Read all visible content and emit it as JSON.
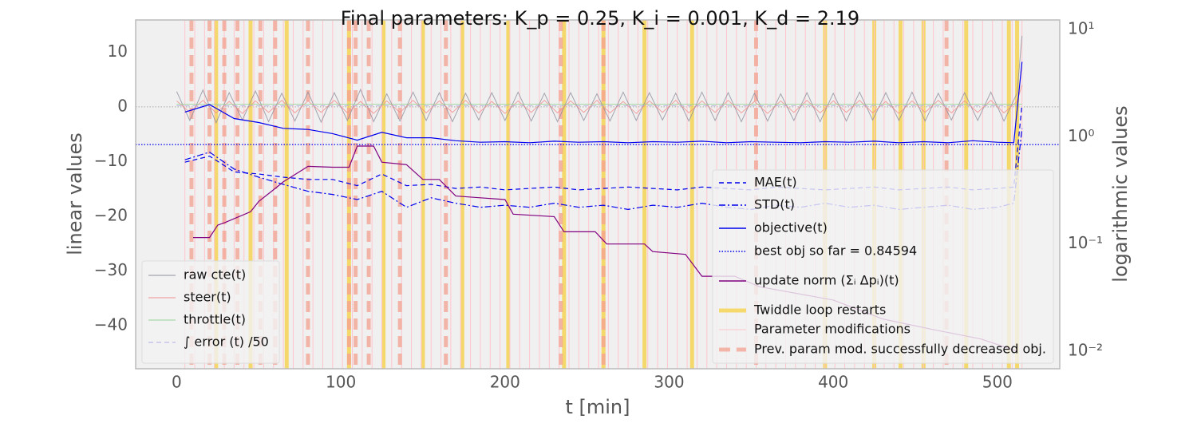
{
  "chart_data": {
    "type": "line",
    "title": "Final parameters: K_p = 0.25, K_i = 0.001, K_d = 2.19",
    "xlabel": "t [min]",
    "ylabel": "linear values",
    "y2label": "logarithmic values",
    "xlim": [
      -25,
      538
    ],
    "ylim": [
      -47.9,
      15.9
    ],
    "y2lim": [
      0.00686,
      12.3
    ],
    "y2scale": "log",
    "xticks": [
      0,
      100,
      200,
      300,
      400,
      500
    ],
    "yticks": [
      {
        "value": -40,
        "label": "−40"
      },
      {
        "value": -30,
        "label": "−30"
      },
      {
        "value": -20,
        "label": "−20"
      },
      {
        "value": -10,
        "label": "−10"
      },
      0,
      10
    ],
    "y2ticks": [
      {
        "value": 0.01,
        "label": "10⁻²"
      },
      {
        "value": 0.1,
        "label": "10⁻¹"
      },
      {
        "value": 1,
        "label": "10⁰"
      },
      {
        "value": 10,
        "label": "10¹"
      }
    ],
    "series": [
      {
        "name": "raw cte(t)",
        "color": "#8a8a9a",
        "linestyle": "solid",
        "axis": "y",
        "legend": "left",
        "x": [
          0,
          8,
          16,
          24,
          32,
          40,
          48,
          56,
          64,
          72,
          80,
          88,
          96,
          104,
          112,
          120,
          128,
          136,
          144,
          152,
          160,
          168,
          176,
          184,
          192,
          200,
          208,
          216,
          224,
          232,
          240,
          248,
          256,
          264,
          272,
          280,
          288,
          296,
          304,
          312,
          320,
          328,
          336,
          344,
          352,
          360,
          368,
          376,
          384,
          392,
          400,
          408,
          416,
          424,
          432,
          440,
          448,
          456,
          464,
          472,
          480,
          488,
          496,
          504,
          512,
          515
        ],
        "values": [
          2.8,
          -2.5,
          3.1,
          -2.9,
          2.6,
          -2.4,
          2.9,
          -2.7,
          2.5,
          -2.6,
          2.7,
          -2.8,
          2.6,
          -2.5,
          3.2,
          -2.7,
          2.4,
          -2.6,
          2.7,
          -2.5,
          2.6,
          -2.7,
          2.5,
          -2.4,
          2.6,
          -2.5,
          2.7,
          -2.6,
          2.5,
          -2.7,
          2.6,
          -2.5,
          2.4,
          -2.6,
          2.7,
          -2.5,
          2.6,
          -2.4,
          2.5,
          -2.6,
          2.7,
          -2.5,
          2.6,
          -2.7,
          2.5,
          -2.6,
          2.4,
          -2.5,
          2.6,
          -2.7,
          2.5,
          -2.6,
          2.7,
          -2.4,
          2.6,
          -2.5,
          2.7,
          -2.6,
          2.5,
          -2.4,
          2.6,
          -2.5,
          2.7,
          -2.6,
          2.5,
          13
        ]
      },
      {
        "name": "steer(t)",
        "color": "#f08a8a",
        "linestyle": "solid",
        "axis": "y",
        "legend": "left",
        "x": [
          0,
          8,
          16,
          24,
          32,
          40,
          48,
          56,
          64,
          72,
          80,
          88,
          96,
          104,
          112,
          120,
          128,
          136,
          144,
          152,
          160,
          168,
          176,
          184,
          192,
          200,
          208,
          216,
          224,
          232,
          240,
          248,
          256,
          264,
          272,
          280,
          288,
          296,
          304,
          312,
          320,
          328,
          336,
          344,
          352,
          360,
          368,
          376,
          384,
          392,
          400,
          408,
          416,
          424,
          432,
          440,
          448,
          456,
          464,
          472,
          480,
          488,
          496,
          504,
          512,
          515
        ],
        "values": [
          1.1,
          -1.0,
          1.2,
          -1.1,
          1.0,
          -1.2,
          1.1,
          -1.0,
          1.2,
          -1.1,
          1.1,
          -1.0,
          1.2,
          -1.1,
          1.0,
          -1.2,
          1.1,
          -1.0,
          1.2,
          -1.1,
          1.1,
          -1.0,
          1.2,
          -1.1,
          1.0,
          -1.2,
          1.1,
          -1.0,
          1.2,
          -1.1,
          1.1,
          -1.0,
          1.2,
          -1.1,
          1.0,
          -1.2,
          1.1,
          -1.0,
          1.2,
          -1.1,
          1.1,
          -1.0,
          1.2,
          -1.1,
          1.0,
          -1.2,
          1.1,
          -1.0,
          1.2,
          -1.1,
          1.1,
          -1.0,
          1.2,
          -1.1,
          1.0,
          -1.2,
          1.1,
          -1.0,
          1.2,
          -1.1,
          1.1,
          -1.0,
          1.2,
          -1.1,
          1.0,
          4
        ]
      },
      {
        "name": "throttle(t)",
        "color": "#8fd18f",
        "linestyle": "solid",
        "axis": "y",
        "legend": "left",
        "x": [
          0,
          515
        ],
        "values": [
          0.5,
          0.5
        ]
      },
      {
        "name": "∫ error (t) /50",
        "color": "#a9a9e0",
        "linestyle": "dashed",
        "axis": "y",
        "legend": "left",
        "x": [
          0,
          515
        ],
        "values": [
          0.2,
          0.2
        ]
      },
      {
        "name": "MAE(t)",
        "color": "#0000ee",
        "linestyle": "dashed",
        "axis": "y2",
        "legend": "right",
        "x": [
          5,
          20,
          35,
          50,
          65,
          80,
          95,
          110,
          125,
          140,
          155,
          170,
          185,
          200,
          215,
          230,
          245,
          260,
          275,
          290,
          305,
          320,
          335,
          350,
          365,
          380,
          395,
          410,
          425,
          440,
          455,
          470,
          485,
          500,
          510,
          515
        ],
        "values": [
          0.58,
          0.66,
          0.47,
          0.45,
          0.42,
          0.4,
          0.4,
          0.35,
          0.45,
          0.35,
          0.36,
          0.33,
          0.34,
          0.32,
          0.33,
          0.34,
          0.32,
          0.33,
          0.34,
          0.33,
          0.32,
          0.34,
          0.33,
          0.32,
          0.34,
          0.33,
          0.32,
          0.33,
          0.34,
          0.32,
          0.33,
          0.34,
          0.32,
          0.33,
          0.34,
          2.0
        ]
      },
      {
        "name": "STD(t)",
        "color": "#0000ee",
        "linestyle": "dashdot",
        "axis": "y2",
        "legend": "right",
        "x": [
          5,
          20,
          35,
          50,
          65,
          80,
          95,
          110,
          125,
          140,
          155,
          170,
          185,
          200,
          215,
          230,
          245,
          260,
          275,
          290,
          305,
          320,
          335,
          350,
          365,
          380,
          395,
          410,
          425,
          440,
          455,
          470,
          485,
          500,
          510,
          515
        ],
        "values": [
          0.61,
          0.72,
          0.5,
          0.42,
          0.36,
          0.31,
          0.29,
          0.26,
          0.31,
          0.22,
          0.27,
          0.24,
          0.22,
          0.23,
          0.22,
          0.24,
          0.22,
          0.23,
          0.21,
          0.23,
          0.22,
          0.24,
          0.22,
          0.21,
          0.23,
          0.22,
          0.24,
          0.22,
          0.23,
          0.21,
          0.22,
          0.23,
          0.21,
          0.22,
          0.24,
          1.2
        ]
      },
      {
        "name": "objective(t)",
        "color": "#0000ee",
        "linestyle": "solid",
        "axis": "y2",
        "legend": "right",
        "x": [
          5,
          20,
          35,
          50,
          65,
          80,
          95,
          110,
          125,
          140,
          155,
          170,
          185,
          200,
          215,
          230,
          245,
          260,
          275,
          290,
          305,
          320,
          335,
          350,
          365,
          380,
          395,
          410,
          425,
          440,
          455,
          470,
          485,
          500,
          510,
          515
        ],
        "values": [
          1.7,
          2.0,
          1.48,
          1.36,
          1.2,
          1.17,
          1.07,
          0.93,
          1.1,
          0.98,
          0.98,
          0.92,
          0.89,
          0.9,
          0.88,
          0.91,
          0.89,
          0.9,
          0.88,
          0.9,
          0.89,
          0.91,
          0.88,
          0.9,
          0.89,
          0.88,
          0.9,
          0.89,
          0.91,
          0.88,
          0.9,
          0.88,
          0.92,
          0.89,
          0.88,
          5
        ]
      },
      {
        "name": "best obj so far  = 0.84594",
        "color": "#0000ee",
        "linestyle": "dotted",
        "axis": "y2",
        "legend": "right",
        "hline": 0.84594
      },
      {
        "name": "update norm (Σᵢ Δpᵢ)(t)",
        "color": "#800080",
        "linestyle": "solid",
        "axis": "y2",
        "legend": "right",
        "x": [
          10,
          20,
          25,
          30,
          45,
          50,
          60,
          65,
          80,
          95,
          105,
          110,
          120,
          125,
          140,
          150,
          160,
          170,
          185,
          200,
          205,
          230,
          236,
          255,
          262,
          285,
          290,
          310,
          320,
          340,
          355,
          400,
          430,
          460,
          490,
          512
        ],
        "values": [
          0.115,
          0.115,
          0.15,
          0.16,
          0.2,
          0.25,
          0.33,
          0.38,
          0.53,
          0.52,
          0.52,
          0.82,
          0.82,
          0.58,
          0.55,
          0.4,
          0.4,
          0.28,
          0.27,
          0.26,
          0.19,
          0.18,
          0.13,
          0.13,
          0.1,
          0.1,
          0.085,
          0.08,
          0.05,
          0.05,
          0.04,
          0.03,
          0.02,
          0.016,
          0.013,
          0.01
        ]
      }
    ],
    "vlines": [
      {
        "name": "Twiddle loop restarts",
        "color": "#f7d040",
        "linestyle": "solid",
        "x": [
          24,
          45,
          67,
          105,
          126,
          150,
          174,
          202,
          236,
          260,
          285,
          314,
          395,
          425,
          441,
          455,
          481,
          507,
          512
        ]
      },
      {
        "name": "Parameter modifications",
        "color": "#ffc4cc",
        "linestyle": "solid",
        "x": [
          5,
          11,
          17,
          23,
          29,
          35,
          41,
          47,
          53,
          59,
          65,
          71,
          77,
          83,
          89,
          95,
          101,
          107,
          113,
          119,
          125,
          131,
          137,
          143,
          149,
          155,
          161,
          167,
          173,
          179,
          185,
          191,
          197,
          203,
          209,
          215,
          221,
          227,
          233,
          239,
          245,
          251,
          257,
          263,
          269,
          275,
          281,
          287,
          293,
          299,
          305,
          311,
          317,
          323,
          329,
          335,
          341,
          347,
          353,
          359,
          365,
          371,
          377,
          383,
          389,
          395,
          401,
          407,
          413,
          419,
          425,
          431,
          437,
          443,
          449,
          455,
          461,
          467,
          473,
          479,
          485,
          491,
          497,
          503,
          509,
          515
        ]
      },
      {
        "name": "Prev. param mod. successfully decreased obj.",
        "color": "#f4a090",
        "linestyle": "dashed",
        "x": [
          9,
          20,
          29,
          37,
          51,
          60,
          80,
          105,
          109,
          117,
          136,
          164,
          234,
          260,
          353,
          469
        ]
      }
    ]
  }
}
